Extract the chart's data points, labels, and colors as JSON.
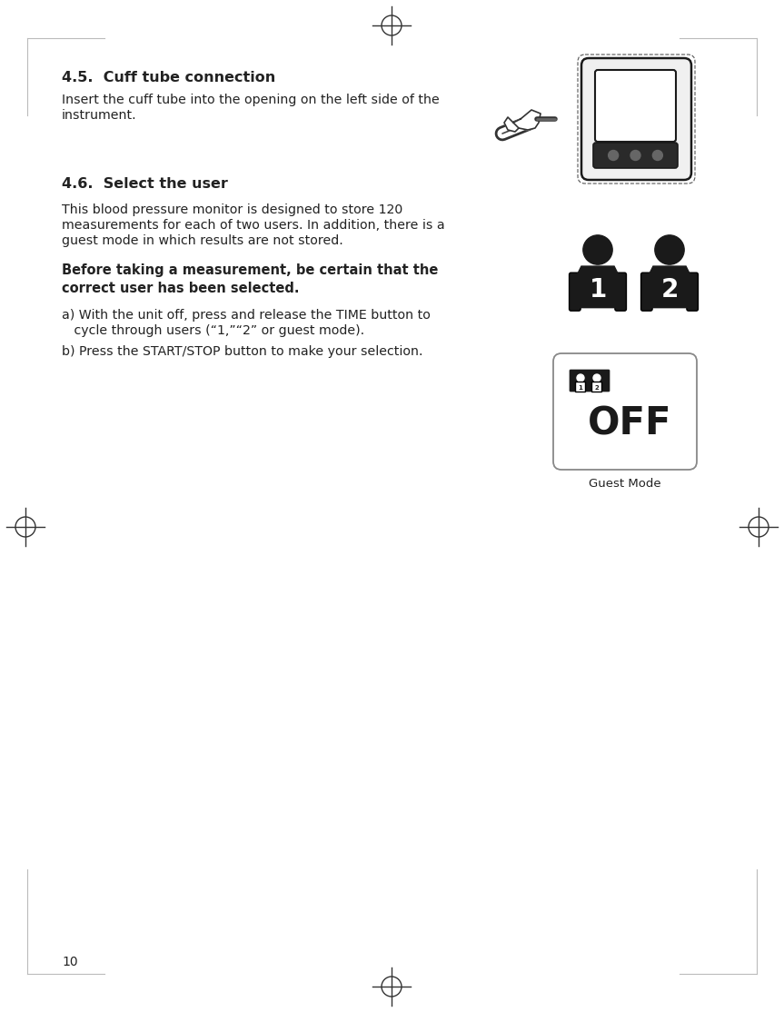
{
  "bg_color": "#ffffff",
  "page_number": "10",
  "section_45_title": "4.5.  Cuff tube connection",
  "section_45_body_1": "Insert the cuff tube into the opening on the left side of the",
  "section_45_body_2": "instrument.",
  "section_46_title": "4.6.  Select the user",
  "section_46_body_1": "This blood pressure monitor is designed to store 120",
  "section_46_body_2": "measurements for each of two users. In addition, there is a",
  "section_46_body_3": "guest mode in which results are not stored.",
  "section_46_bold_1": "Before taking a measurement, be certain that the",
  "section_46_bold_2": "correct user has been selected.",
  "section_46_a1": "a) With the unit off, press and release the TIME button to",
  "section_46_a2": "   cycle through users (“1,”“‘2” or guest mode).",
  "section_46_b": "b) Press the START/STOP button to make your selection.",
  "guest_mode_label": "Guest Mode",
  "icon_color": "#1a1a1a",
  "text_color": "#222222",
  "border_color": "#bbbbbb"
}
